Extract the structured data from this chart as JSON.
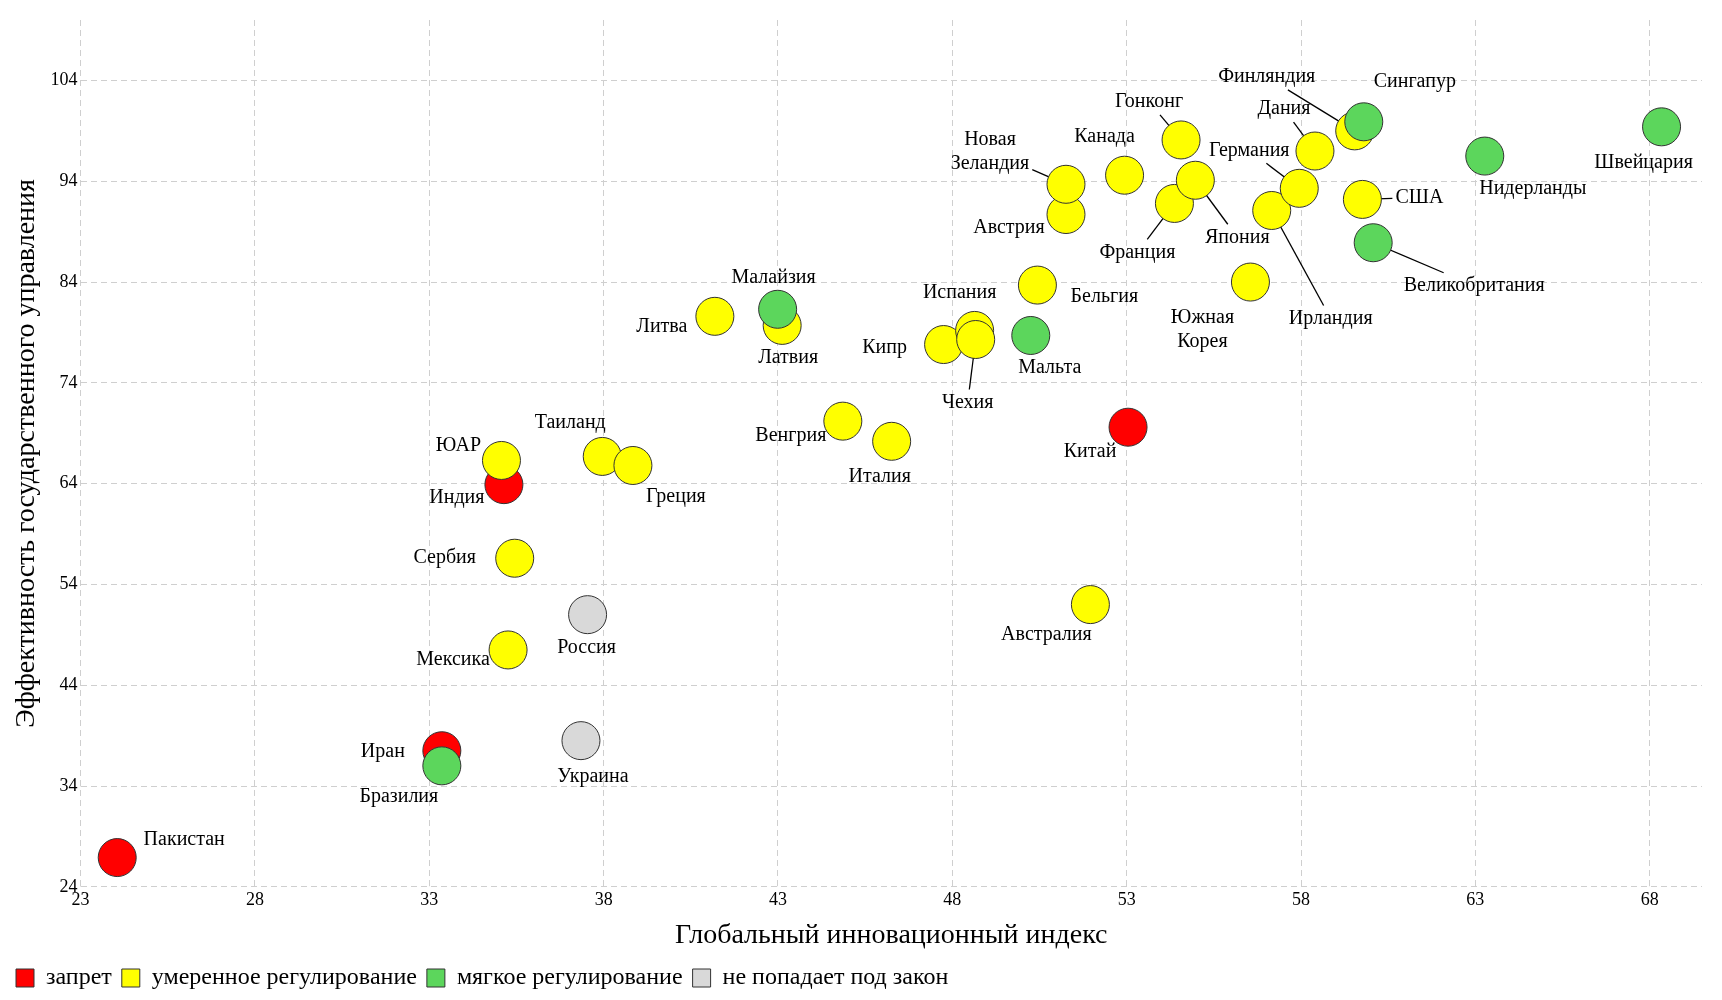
{
  "chart_data": {
    "type": "scatter",
    "xlabel": "Глобальный инновационный индекс",
    "ylabel": "Эффективность государственного управления",
    "xlim": [
      23,
      69.5
    ],
    "xticks": [
      23,
      28,
      33,
      38,
      43,
      48,
      53,
      58,
      63,
      68
    ],
    "ylim": [
      24,
      110
    ],
    "yticks": [
      24,
      34,
      44,
      54,
      64,
      74,
      84,
      94,
      104
    ],
    "grid": true,
    "legend": "bottom left",
    "marker": "circle",
    "series": [
      {
        "name": "запрет",
        "color": "#ff0000",
        "x": [
          24.05,
          33.36,
          35.14,
          53.04
        ],
        "values": [
          26.9,
          37.5,
          63.9,
          69.6
        ]
      },
      {
        "name": "умеренное регулирование",
        "color": "#ffff00",
        "x": [
          35.26,
          35.45,
          35.07,
          37.96,
          38.84,
          41.19,
          43.12,
          44.86,
          46.26,
          47.75,
          48.64,
          48.67,
          50.44,
          51.26,
          51.26,
          52.94,
          51.96,
          54.56,
          54.37,
          54.97,
          56.55,
          57.16,
          57.95,
          58.4,
          59.54,
          59.76
        ],
        "values": [
          47.5,
          56.6,
          66.3,
          66.7,
          65.8,
          80.6,
          79.7,
          70.2,
          68.2,
          77.8,
          79.2,
          78.3,
          83.7,
          90.7,
          93.7,
          94.6,
          52.0,
          98.1,
          91.8,
          94.1,
          84.0,
          91.1,
          93.3,
          97.0,
          99.0,
          92.2
        ]
      },
      {
        "name": "мягкое регулирование",
        "color": "#5cd65c",
        "x": [
          33.36,
          42.99,
          50.25,
          59.8,
          60.07,
          63.27,
          68.34
        ],
        "values": [
          36.0,
          81.3,
          78.7,
          99.9,
          87.9,
          96.5,
          99.4
        ]
      },
      {
        "name": "не попадает под закон",
        "color": "#d9d9d9",
        "x": [
          37.35,
          37.54
        ],
        "values": [
          38.5,
          51.0
        ]
      }
    ],
    "annotations": [
      {
        "text": "Пакистан",
        "x": 24.05,
        "y": 26.9
      },
      {
        "text": "Иран",
        "x": 33.36,
        "y": 37.5
      },
      {
        "text": "Бразилия",
        "x": 33.36,
        "y": 36.0
      },
      {
        "text": "Украина",
        "x": 37.35,
        "y": 38.5
      },
      {
        "text": "Россия",
        "x": 37.54,
        "y": 51.0
      },
      {
        "text": "Мексика",
        "x": 35.26,
        "y": 47.5
      },
      {
        "text": "Сербия",
        "x": 35.45,
        "y": 56.6
      },
      {
        "text": "Индия",
        "x": 35.14,
        "y": 63.9
      },
      {
        "text": "ЮАР",
        "x": 35.07,
        "y": 66.3
      },
      {
        "text": "Таиланд",
        "x": 37.96,
        "y": 66.7
      },
      {
        "text": "Греция",
        "x": 38.84,
        "y": 65.8
      },
      {
        "text": "Литва",
        "x": 41.19,
        "y": 80.6
      },
      {
        "text": "Латвия",
        "x": 43.12,
        "y": 79.7
      },
      {
        "text": "Малайзия",
        "x": 42.99,
        "y": 81.3
      },
      {
        "text": "Венгрия",
        "x": 44.86,
        "y": 70.2
      },
      {
        "text": "Италия",
        "x": 46.26,
        "y": 68.2
      },
      {
        "text": "Кипр",
        "x": 47.75,
        "y": 77.8
      },
      {
        "text": "Испания",
        "x": 48.64,
        "y": 79.2
      },
      {
        "text": "Чехия",
        "x": 48.67,
        "y": 78.3
      },
      {
        "text": "Мальта",
        "x": 50.25,
        "y": 78.7
      },
      {
        "text": "Бельгия",
        "x": 50.44,
        "y": 83.7
      },
      {
        "text": "Австрия",
        "x": 51.26,
        "y": 90.7
      },
      {
        "text": "Новая Зеландия",
        "x": 51.26,
        "y": 93.7
      },
      {
        "text": "Канада",
        "x": 52.94,
        "y": 94.6
      },
      {
        "text": "Китай",
        "x": 53.04,
        "y": 69.6
      },
      {
        "text": "Австралия",
        "x": 51.96,
        "y": 52.0
      },
      {
        "text": "Гонконг",
        "x": 54.56,
        "y": 98.1
      },
      {
        "text": "Франция",
        "x": 54.37,
        "y": 91.8
      },
      {
        "text": "Япония",
        "x": 54.97,
        "y": 94.1
      },
      {
        "text": "Южная Корея",
        "x": 56.55,
        "y": 84.0
      },
      {
        "text": "Ирландия",
        "x": 57.16,
        "y": 91.1
      },
      {
        "text": "Германия",
        "x": 57.95,
        "y": 93.3
      },
      {
        "text": "Дания",
        "x": 58.4,
        "y": 97.0
      },
      {
        "text": "Финляндия",
        "x": 59.54,
        "y": 99.0
      },
      {
        "text": "Сингапур",
        "x": 59.8,
        "y": 99.9
      },
      {
        "text": "США",
        "x": 59.76,
        "y": 92.2
      },
      {
        "text": "Великобритания",
        "x": 60.07,
        "y": 87.9
      },
      {
        "text": "Нидерланды",
        "x": 63.27,
        "y": 96.5
      },
      {
        "text": "Швейцария",
        "x": 68.34,
        "y": 99.4
      }
    ]
  }
}
